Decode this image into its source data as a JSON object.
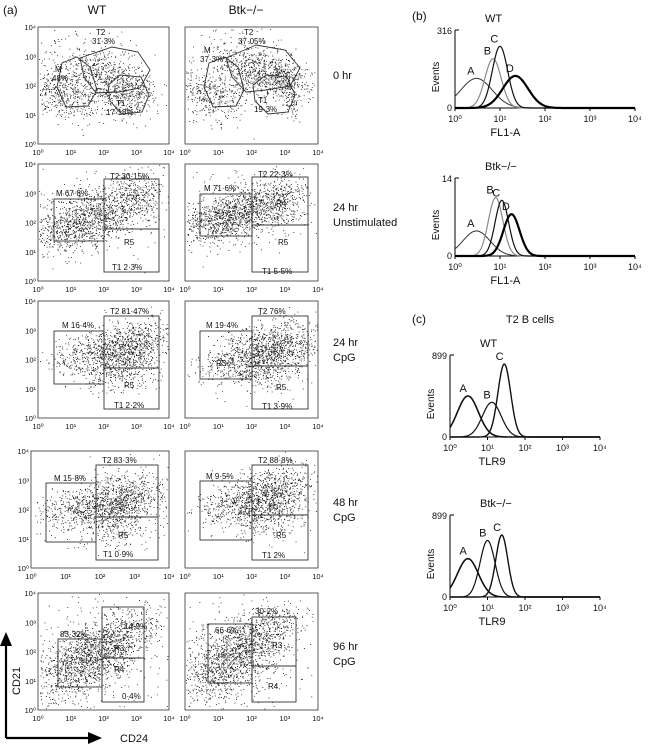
{
  "panels": {
    "a": "(a)",
    "b": "(b)",
    "c": "(c)"
  },
  "columns": {
    "wt": "WT",
    "btk": "Btk−/−"
  },
  "x_ticks": [
    "10⁰",
    "10¹",
    "10²",
    "10³",
    "10⁴"
  ],
  "y_ticks": [
    "10⁰",
    "10¹",
    "10²",
    "10³",
    "10⁴"
  ],
  "axis_labels": {
    "y": "CD21",
    "x": "CD24"
  },
  "row_labels": [
    [
      "0 hr"
    ],
    [
      "24 hr",
      "Unstimulated"
    ],
    [
      "24 hr",
      "CpG"
    ],
    [
      "48 hr",
      "CpG"
    ],
    [
      "96 hr",
      "CpG"
    ]
  ],
  "scatter_gates": {
    "row0": {
      "wt": {
        "M": [
          "M",
          "48%"
        ],
        "T2": [
          "T2",
          "31·3%"
        ],
        "T1": [
          "T1",
          "17·18%"
        ]
      },
      "btk": {
        "M": [
          "M",
          "37·3%"
        ],
        "T2": [
          "T2",
          "37·05%"
        ],
        "T1": [
          "T1",
          "19·3%"
        ]
      }
    },
    "row1": {
      "wt": {
        "M": "M 67·8%",
        "T2": "T2 30·15%",
        "R4": "R4",
        "R5": "R5",
        "T1": "T1 2·3%"
      },
      "btk": {
        "M": "M 71·6%",
        "T2": "T2 22·3%",
        "R4": "R4",
        "R5": "R5",
        "T1": "T1 5·5%"
      }
    },
    "row2": {
      "wt": {
        "M": "M 16·4%",
        "T2": "T2 81·47%",
        "R5": "R5",
        "T1": "T1 2·2%"
      },
      "btk": {
        "M": "M 19·4%",
        "T2": "T2 76%",
        "R3": "R3",
        "R5": "R5",
        "T1": "T1 3·9%"
      }
    },
    "row3": {
      "wt": {
        "M": "M 15·8%",
        "T2": "T2 83·3%",
        "R5": "R5",
        "T1": "T1 0·9%"
      },
      "btk": {
        "M": "M 9·5%",
        "T2": "T2 88·8%",
        "R5": "R5",
        "T1": "T1 2%"
      }
    },
    "row4": {
      "wt": {
        "M": "83·32%",
        "R3": "R3",
        "R3pct": "14·9%",
        "R4": "R4",
        "R4pct": "0·4%"
      },
      "btk": {
        "M": "66·6%",
        "R3": "R3",
        "R3pct": "30·2%",
        "R4": "R4"
      }
    }
  },
  "panel_c_title": "T2 B cells",
  "chart_data": [
    {
      "type": "line",
      "title": "WT",
      "xlabel": "FL1-A",
      "ylabel": "Events",
      "x_scale": "log",
      "xlim": [
        1,
        10000
      ],
      "ylim": [
        0,
        316
      ],
      "y_top_tick": "316",
      "x_tick_labels": [
        "10⁰",
        "10¹",
        "10²",
        "10³",
        "10⁴"
      ],
      "series": [
        {
          "name": "A",
          "peak_x": 3,
          "peak_y": 120,
          "width": 0.35,
          "stroke": "#333333",
          "weight": 1
        },
        {
          "name": "B",
          "peak_x": 7,
          "peak_y": 200,
          "width": 0.18,
          "stroke": "#8a8a8a",
          "weight": 1.2
        },
        {
          "name": "C",
          "peak_x": 10,
          "peak_y": 250,
          "width": 0.17,
          "stroke": "#111111",
          "weight": 1.2
        },
        {
          "name": "D",
          "peak_x": 22,
          "peak_y": 130,
          "width": 0.28,
          "stroke": "#000000",
          "weight": 2.2
        }
      ]
    },
    {
      "type": "line",
      "title": "Btk−/−",
      "xlabel": "FL1-A",
      "ylabel": "Events",
      "x_scale": "log",
      "xlim": [
        1,
        10000
      ],
      "ylim": [
        0,
        14
      ],
      "y_top_tick": "14",
      "x_tick_labels": [
        "10⁰",
        "10¹",
        "10²",
        "10³",
        "10⁴"
      ],
      "series": [
        {
          "name": "A",
          "peak_x": 3,
          "peak_y": 4.5,
          "width": 0.3,
          "stroke": "#333333",
          "weight": 1
        },
        {
          "name": "B",
          "peak_x": 8,
          "peak_y": 10.5,
          "width": 0.16,
          "stroke": "#8a8a8a",
          "weight": 1.2
        },
        {
          "name": "C",
          "peak_x": 11,
          "peak_y": 10,
          "width": 0.15,
          "stroke": "#111111",
          "weight": 1.2
        },
        {
          "name": "D",
          "peak_x": 18,
          "peak_y": 7.5,
          "width": 0.18,
          "stroke": "#000000",
          "weight": 2.2
        }
      ]
    },
    {
      "type": "line",
      "title": "WT",
      "xlabel": "TLR9",
      "ylabel": "Events",
      "x_scale": "log",
      "xlim": [
        1,
        10000
      ],
      "ylim": [
        0,
        899
      ],
      "y_top_tick": "899",
      "x_tick_labels": [
        "10⁰",
        "10¹",
        "10²",
        "10³",
        "10⁴"
      ],
      "series": [
        {
          "name": "A",
          "peak_x": 3,
          "peak_y": 450,
          "width": 0.28,
          "stroke": "#111111",
          "weight": 1.6
        },
        {
          "name": "B",
          "peak_x": 13,
          "peak_y": 380,
          "width": 0.25,
          "stroke": "#111111",
          "weight": 1.2
        },
        {
          "name": "C",
          "peak_x": 28,
          "peak_y": 800,
          "width": 0.17,
          "stroke": "#111111",
          "weight": 1.4
        }
      ]
    },
    {
      "type": "line",
      "title": "Btk−/−",
      "xlabel": "TLR9",
      "ylabel": "Events",
      "x_scale": "log",
      "xlim": [
        1,
        10000
      ],
      "ylim": [
        0,
        899
      ],
      "y_top_tick": "899",
      "x_tick_labels": [
        "10⁰",
        "10¹",
        "10²",
        "10³",
        "10⁴"
      ],
      "series": [
        {
          "name": "A",
          "peak_x": 3,
          "peak_y": 420,
          "width": 0.28,
          "stroke": "#111111",
          "weight": 1.6
        },
        {
          "name": "B",
          "peak_x": 10,
          "peak_y": 620,
          "width": 0.2,
          "stroke": "#111111",
          "weight": 1.2
        },
        {
          "name": "C",
          "peak_x": 24,
          "peak_y": 680,
          "width": 0.16,
          "stroke": "#111111",
          "weight": 1.4
        }
      ]
    }
  ]
}
